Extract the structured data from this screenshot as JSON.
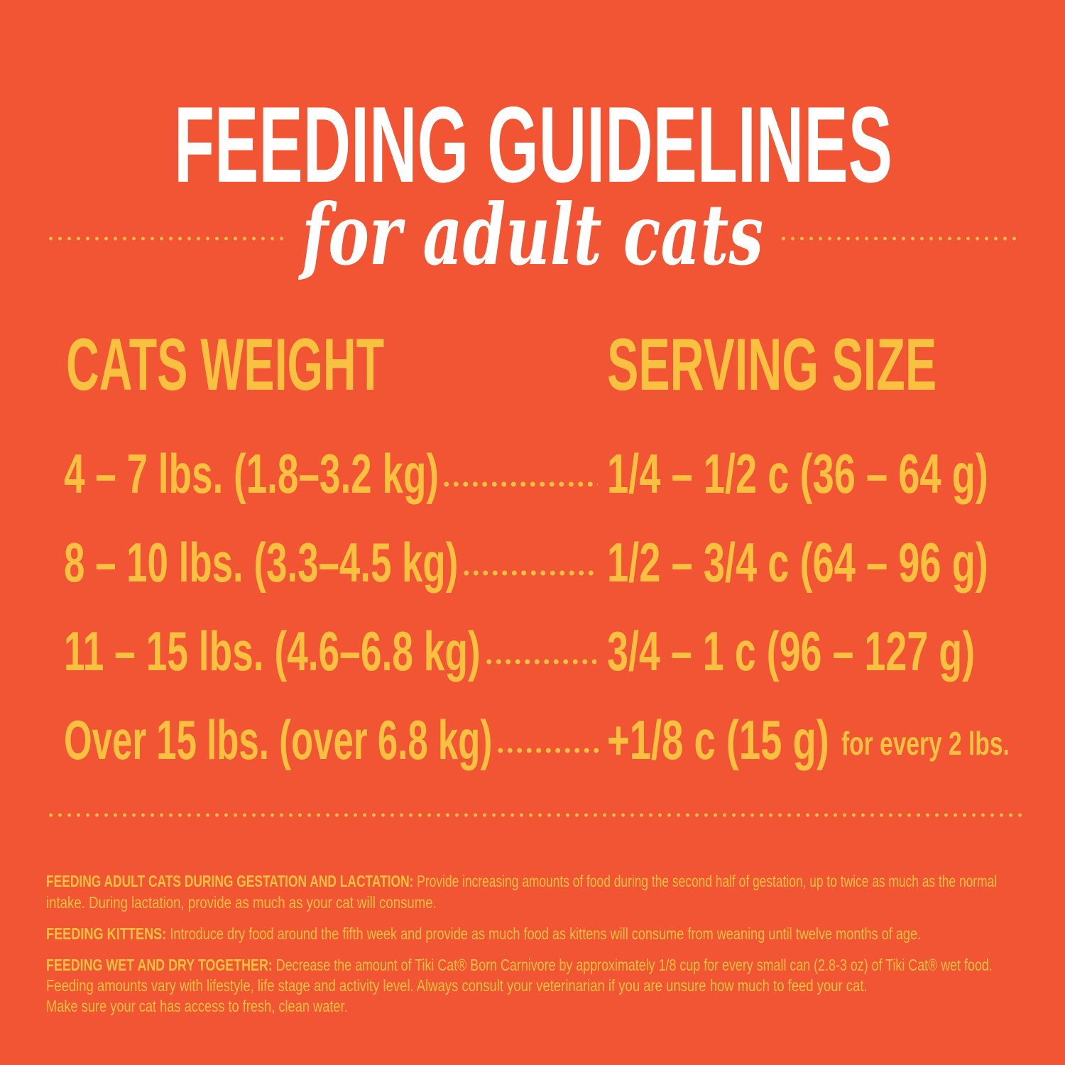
{
  "title": "FEEDING GUIDELINES",
  "subtitle": "for adult cats",
  "colors": {
    "background": "#F15533",
    "accent": "#F9C13F",
    "title": "#FFFFFF"
  },
  "table": {
    "headers": {
      "weight": "CATS WEIGHT",
      "serving": "SERVING SIZE"
    },
    "rows": [
      {
        "weight": "4 – 7 lbs. (1.8–3.2 kg)",
        "serving": "1/4 – 1/2 c (36 – 64 g)",
        "note": ""
      },
      {
        "weight": "8 – 10 lbs. (3.3–4.5 kg)",
        "serving": "1/2 – 3/4 c (64 – 96 g)",
        "note": ""
      },
      {
        "weight": "11 – 15 lbs. (4.6–6.8 kg)",
        "serving": "3/4 – 1 c (96 – 127 g)",
        "note": ""
      },
      {
        "weight": "Over 15 lbs. (over 6.8 kg)",
        "serving": "+1/8 c (15 g)",
        "note": "for every 2 lbs."
      }
    ]
  },
  "footnotes": [
    {
      "heading": "FEEDING ADULT CATS DURING GESTATION AND LACTATION:",
      "lines": [
        "Provide increasing amounts of food during the second half of gestation, up to twice as much as the normal",
        "intake.  During lactation, provide as much as your cat will consume."
      ]
    },
    {
      "heading": "FEEDING KITTENS:",
      "lines": [
        "Introduce dry food around the fifth week and provide as much food as kittens will consume from weaning until twelve months of age."
      ]
    },
    {
      "heading": "FEEDING WET AND DRY TOGETHER:",
      "lines": [
        "Decrease the amount of Tiki Cat® Born Carnivore by approximately 1/8 cup for every small can (2.8-3 oz) of Tiki Cat® wet food.",
        "Feeding amounts vary with lifestyle, life stage and activity level.  Always consult your veterinarian if you are unsure how much to feed your cat.",
        "Make sure your cat has access to fresh, clean water."
      ]
    }
  ]
}
